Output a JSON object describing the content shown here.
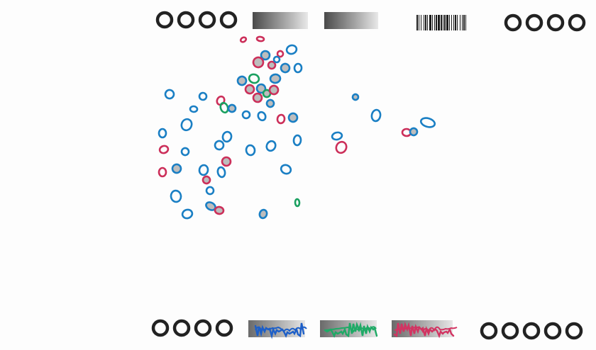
{
  "colors": {
    "paper": "#fdfdfd",
    "registration": "#222222",
    "blue": "#1a7fc4",
    "red": "#cc2f5a",
    "green": "#1aa060",
    "fill_gray": "#bdbdbd",
    "swatch_blue": "#1d5fc8",
    "swatch_green": "#1faa66",
    "swatch_red": "#d23462"
  },
  "markers": {
    "top_left_count": 4,
    "top_right_count": 4,
    "bottom_left_count": 4,
    "bottom_right_count": 5
  },
  "swatches": [
    {
      "name": "blue-swatch",
      "color_key": "swatch_blue"
    },
    {
      "name": "green-swatch",
      "color_key": "swatch_green"
    },
    {
      "name": "red-swatch",
      "color_key": "swatch_red"
    }
  ],
  "gradient_bars": 2,
  "barcode": {
    "present": true
  }
}
